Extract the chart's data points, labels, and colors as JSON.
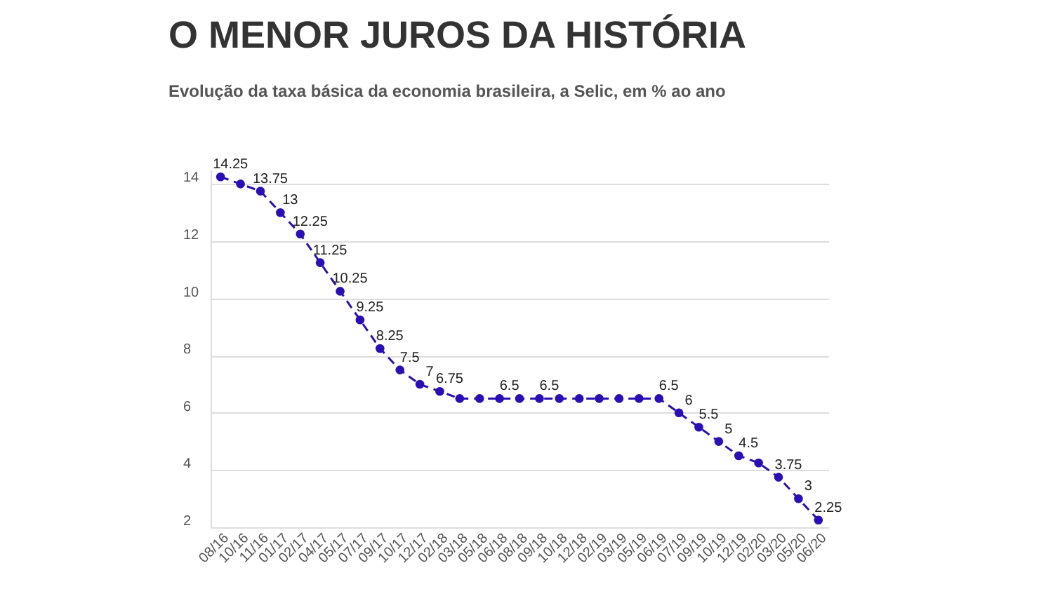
{
  "chart_data": {
    "type": "line",
    "title": "O MENOR JUROS DA HISTÓRIA",
    "subtitle": "Evolução da taxa básica da economia brasileira, a Selic, em % ao ano",
    "categories": [
      "08/16",
      "10/16",
      "11/16",
      "01/17",
      "02/17",
      "04/17",
      "05/17",
      "07/17",
      "09/17",
      "10/17",
      "12/17",
      "02/18",
      "03/18",
      "05/18",
      "06/18",
      "08/18",
      "09/18",
      "10/18",
      "12/18",
      "02/19",
      "03/19",
      "05/19",
      "06/19",
      "07/19",
      "09/19",
      "10/19",
      "12/19",
      "02/20",
      "03/20",
      "05/20",
      "06/20"
    ],
    "series": [
      {
        "color": "#2a0fb4",
        "values": [
          14.25,
          14,
          13.75,
          13,
          12.25,
          11.25,
          10.25,
          9.25,
          8.25,
          7.5,
          7,
          6.75,
          6.5,
          6.5,
          6.5,
          6.5,
          6.5,
          6.5,
          6.5,
          6.5,
          6.5,
          6.5,
          6.5,
          6,
          5.5,
          5,
          4.5,
          4.25,
          3.75,
          3,
          2.25
        ],
        "value_labels": [
          "14.25",
          null,
          "13.75",
          "13",
          "12.25",
          "11.25",
          "10.25",
          "9.25",
          "8.25",
          "7.5",
          "7",
          "6.75",
          null,
          null,
          "6.5",
          null,
          "6.5",
          null,
          null,
          null,
          null,
          null,
          "6.5",
          "6",
          "5.5",
          "5",
          "4.5",
          null,
          "3.75",
          "3",
          "2.25"
        ]
      }
    ],
    "ylim": [
      2,
      14.5
    ],
    "yticks": [
      2,
      4,
      6,
      8,
      10,
      12,
      14
    ],
    "grid": "y",
    "marker": "circle",
    "line_style": "dashed",
    "legend": false
  }
}
